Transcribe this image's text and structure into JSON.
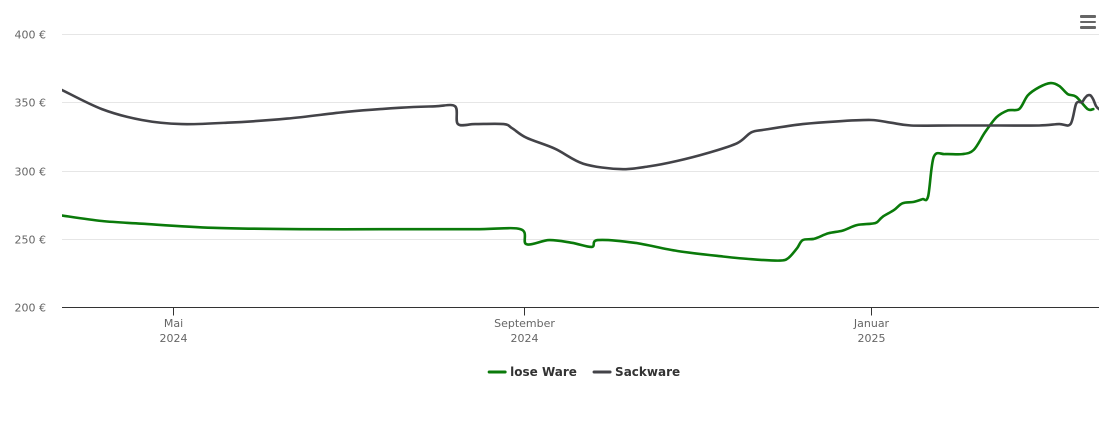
{
  "chart_data": {
    "type": "line",
    "title": "",
    "xlabel": "",
    "ylabel": "",
    "x_range": [
      "2024-03-23",
      "2025-03-22"
    ],
    "ylim": [
      200,
      400
    ],
    "y_ticks": [
      {
        "value": 200,
        "label": "200 €"
      },
      {
        "value": 250,
        "label": "250 €"
      },
      {
        "value": 300,
        "label": "300 €"
      },
      {
        "value": 350,
        "label": "350 €"
      },
      {
        "value": 400,
        "label": "400 €"
      }
    ],
    "x_ticks": [
      {
        "date": "2024-05-01",
        "label": "Mai",
        "sublabel": "2024"
      },
      {
        "date": "2024-09-01",
        "label": "September",
        "sublabel": "2024"
      },
      {
        "date": "2025-01-01",
        "label": "Januar",
        "sublabel": "2025"
      }
    ],
    "grid": true,
    "legend_position": "bottom-center",
    "series": [
      {
        "name": "lose Ware",
        "color": "#0a7a0a",
        "points": [
          [
            "2024-03-23",
            267
          ],
          [
            "2024-04-06",
            263
          ],
          [
            "2024-04-20",
            261
          ],
          [
            "2024-05-15",
            258
          ],
          [
            "2024-06-15",
            257
          ],
          [
            "2024-07-15",
            257
          ],
          [
            "2024-08-15",
            257
          ],
          [
            "2024-08-31",
            257
          ],
          [
            "2024-09-02",
            246
          ],
          [
            "2024-09-10",
            249
          ],
          [
            "2024-09-18",
            247
          ],
          [
            "2024-09-25",
            244
          ],
          [
            "2024-09-27",
            249
          ],
          [
            "2024-10-10",
            247
          ],
          [
            "2024-10-25",
            241
          ],
          [
            "2024-11-10",
            237
          ],
          [
            "2024-11-20",
            235
          ],
          [
            "2024-11-30",
            234
          ],
          [
            "2024-12-03",
            236
          ],
          [
            "2024-12-06",
            243
          ],
          [
            "2024-12-08",
            249
          ],
          [
            "2024-12-12",
            250
          ],
          [
            "2024-12-17",
            254
          ],
          [
            "2024-12-22",
            256
          ],
          [
            "2024-12-27",
            260
          ],
          [
            "2025-01-01",
            261
          ],
          [
            "2025-01-03",
            262
          ],
          [
            "2025-01-05",
            266
          ],
          [
            "2025-01-09",
            271
          ],
          [
            "2025-01-12",
            276
          ],
          [
            "2025-01-16",
            277
          ],
          [
            "2025-01-19",
            279
          ],
          [
            "2025-01-21",
            281
          ],
          [
            "2025-01-23",
            310
          ],
          [
            "2025-01-27",
            312
          ],
          [
            "2025-02-02",
            312
          ],
          [
            "2025-02-06",
            315
          ],
          [
            "2025-02-10",
            328
          ],
          [
            "2025-02-14",
            339
          ],
          [
            "2025-02-18",
            344
          ],
          [
            "2025-02-22",
            345
          ],
          [
            "2025-02-25",
            355
          ],
          [
            "2025-03-01",
            361
          ],
          [
            "2025-03-05",
            364
          ],
          [
            "2025-03-08",
            362
          ],
          [
            "2025-03-11",
            356
          ],
          [
            "2025-03-14",
            354
          ],
          [
            "2025-03-18",
            345
          ],
          [
            "2025-03-20",
            345
          ]
        ]
      },
      {
        "name": "Sackware",
        "color": "#434348",
        "points": [
          [
            "2024-03-23",
            359
          ],
          [
            "2024-04-06",
            345
          ],
          [
            "2024-04-20",
            337
          ],
          [
            "2024-05-04",
            334
          ],
          [
            "2024-05-20",
            335
          ],
          [
            "2024-06-10",
            338
          ],
          [
            "2024-07-01",
            343
          ],
          [
            "2024-07-20",
            346
          ],
          [
            "2024-08-01",
            347
          ],
          [
            "2024-08-08",
            347
          ],
          [
            "2024-08-09",
            334
          ],
          [
            "2024-08-15",
            334
          ],
          [
            "2024-08-25",
            334
          ],
          [
            "2024-08-28",
            331
          ],
          [
            "2024-09-02",
            324
          ],
          [
            "2024-09-12",
            316
          ],
          [
            "2024-09-22",
            305
          ],
          [
            "2024-10-05",
            301
          ],
          [
            "2024-10-15",
            303
          ],
          [
            "2024-10-25",
            307
          ],
          [
            "2024-11-05",
            313
          ],
          [
            "2024-11-15",
            320
          ],
          [
            "2024-11-20",
            328
          ],
          [
            "2024-11-25",
            330
          ],
          [
            "2024-12-08",
            334
          ],
          [
            "2024-12-20",
            336
          ],
          [
            "2025-01-01",
            337
          ],
          [
            "2025-01-08",
            335
          ],
          [
            "2025-01-15",
            333
          ],
          [
            "2025-01-30",
            333
          ],
          [
            "2025-02-15",
            333
          ],
          [
            "2025-03-01",
            333
          ],
          [
            "2025-03-08",
            334
          ],
          [
            "2025-03-12",
            334
          ],
          [
            "2025-03-14",
            349
          ],
          [
            "2025-03-16",
            350
          ],
          [
            "2025-03-17",
            353
          ],
          [
            "2025-03-18",
            355
          ],
          [
            "2025-03-19",
            355
          ],
          [
            "2025-03-20",
            352
          ],
          [
            "2025-03-21",
            347
          ],
          [
            "2025-03-22",
            345
          ]
        ]
      }
    ]
  },
  "menu": {
    "icon": "hamburger-menu-icon"
  }
}
